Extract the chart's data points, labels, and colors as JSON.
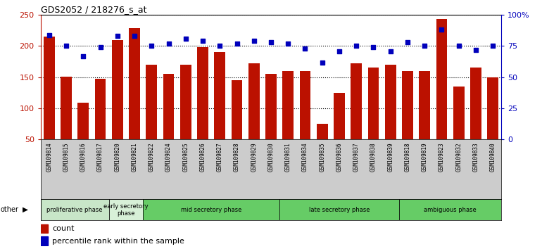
{
  "title": "GDS2052 / 218276_s_at",
  "samples": [
    "GSM109814",
    "GSM109815",
    "GSM109816",
    "GSM109817",
    "GSM109820",
    "GSM109821",
    "GSM109822",
    "GSM109824",
    "GSM109825",
    "GSM109826",
    "GSM109827",
    "GSM109828",
    "GSM109829",
    "GSM109830",
    "GSM109831",
    "GSM109834",
    "GSM109835",
    "GSM109836",
    "GSM109837",
    "GSM109838",
    "GSM109839",
    "GSM109818",
    "GSM109819",
    "GSM109823",
    "GSM109832",
    "GSM109833",
    "GSM109840"
  ],
  "counts": [
    215,
    151,
    109,
    148,
    210,
    229,
    170,
    155,
    170,
    198,
    190,
    145,
    172,
    155,
    160,
    160,
    75,
    125,
    172,
    165,
    170,
    160,
    160,
    243,
    135,
    165,
    150
  ],
  "percentiles": [
    84,
    75,
    67,
    74,
    83,
    83,
    75,
    77,
    81,
    79,
    75,
    77,
    79,
    78,
    77,
    73,
    62,
    71,
    75,
    74,
    71,
    78,
    75,
    88,
    75,
    72,
    75
  ],
  "bar_color": "#bb1100",
  "dot_color": "#0000bb",
  "ylim_left": [
    50,
    250
  ],
  "ylim_right": [
    0,
    100
  ],
  "yticks_left": [
    50,
    100,
    150,
    200,
    250
  ],
  "yticks_right": [
    0,
    25,
    50,
    75,
    100
  ],
  "ytick_labels_right": [
    "0",
    "25",
    "50",
    "75",
    "100%"
  ],
  "phases": [
    {
      "label": "proliferative phase",
      "start": 0,
      "end": 4,
      "color": "#c8e6c8"
    },
    {
      "label": "early secretory\nphase",
      "start": 4,
      "end": 6,
      "color": "#d8f0d8"
    },
    {
      "label": "mid secretory phase",
      "start": 6,
      "end": 14,
      "color": "#66cc66"
    },
    {
      "label": "late secretory phase",
      "start": 14,
      "end": 21,
      "color": "#66cc66"
    },
    {
      "label": "ambiguous phase",
      "start": 21,
      "end": 27,
      "color": "#66cc66"
    }
  ],
  "xtick_bg": "#cccccc",
  "plot_bg": "#ffffff"
}
